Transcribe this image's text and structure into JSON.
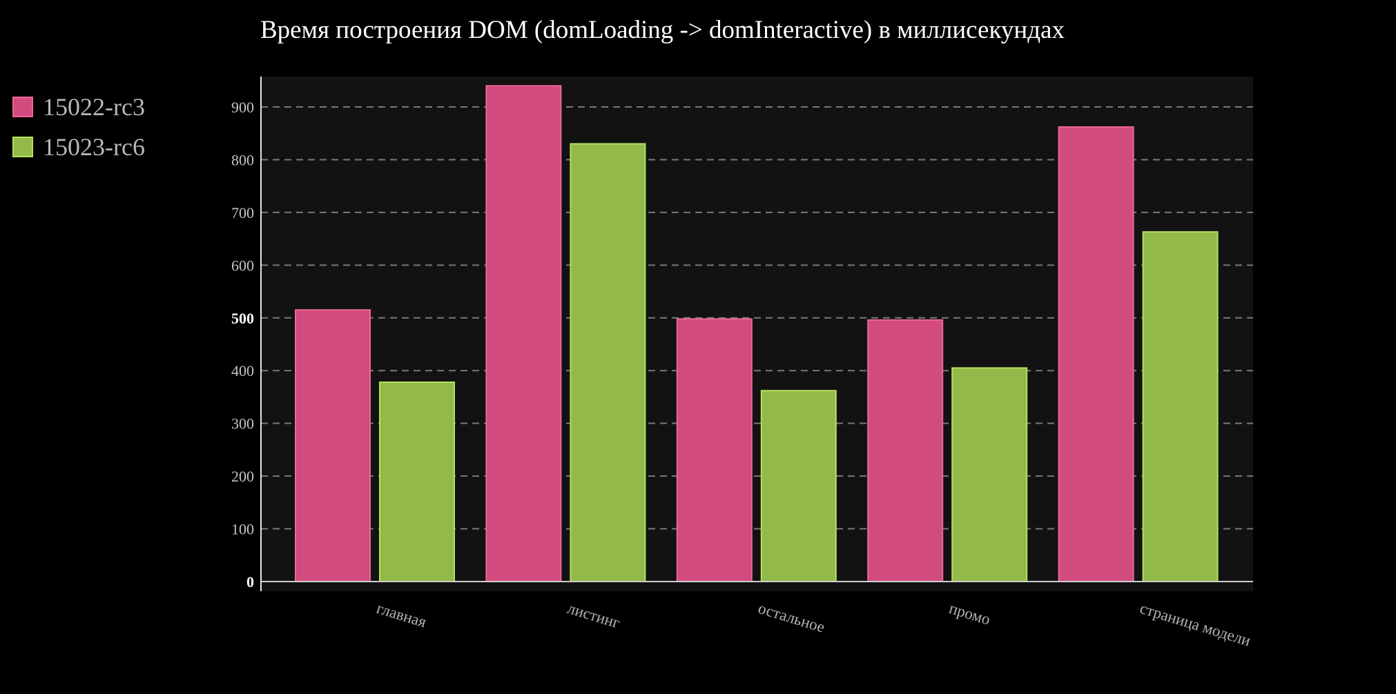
{
  "chart_data": {
    "type": "bar",
    "title": "Время построения DOM (domLoading -> domInteractive) в миллисекундах",
    "xlabel": "",
    "ylabel": "",
    "categories": [
      "главная",
      "листинг",
      "остальное",
      "промо",
      "страница модели"
    ],
    "series": [
      {
        "name": "15022-rc3",
        "values": [
          515,
          940,
          498,
          496,
          862
        ],
        "fill": "#d14b7f",
        "stroke": "#f06699"
      },
      {
        "name": "15023-rc6",
        "values": [
          378,
          830,
          362,
          405,
          663
        ],
        "fill": "#93b94b",
        "stroke": "#b4e25a"
      }
    ],
    "ylim": [
      0,
      960
    ],
    "yticks": [
      0,
      100,
      200,
      300,
      400,
      500,
      600,
      700,
      800,
      900
    ],
    "major_ticks": [
      0,
      500
    ],
    "grid": true,
    "legend_position": "top-left, outside plot",
    "plot_background": "#121212",
    "page_background": "#000000"
  }
}
